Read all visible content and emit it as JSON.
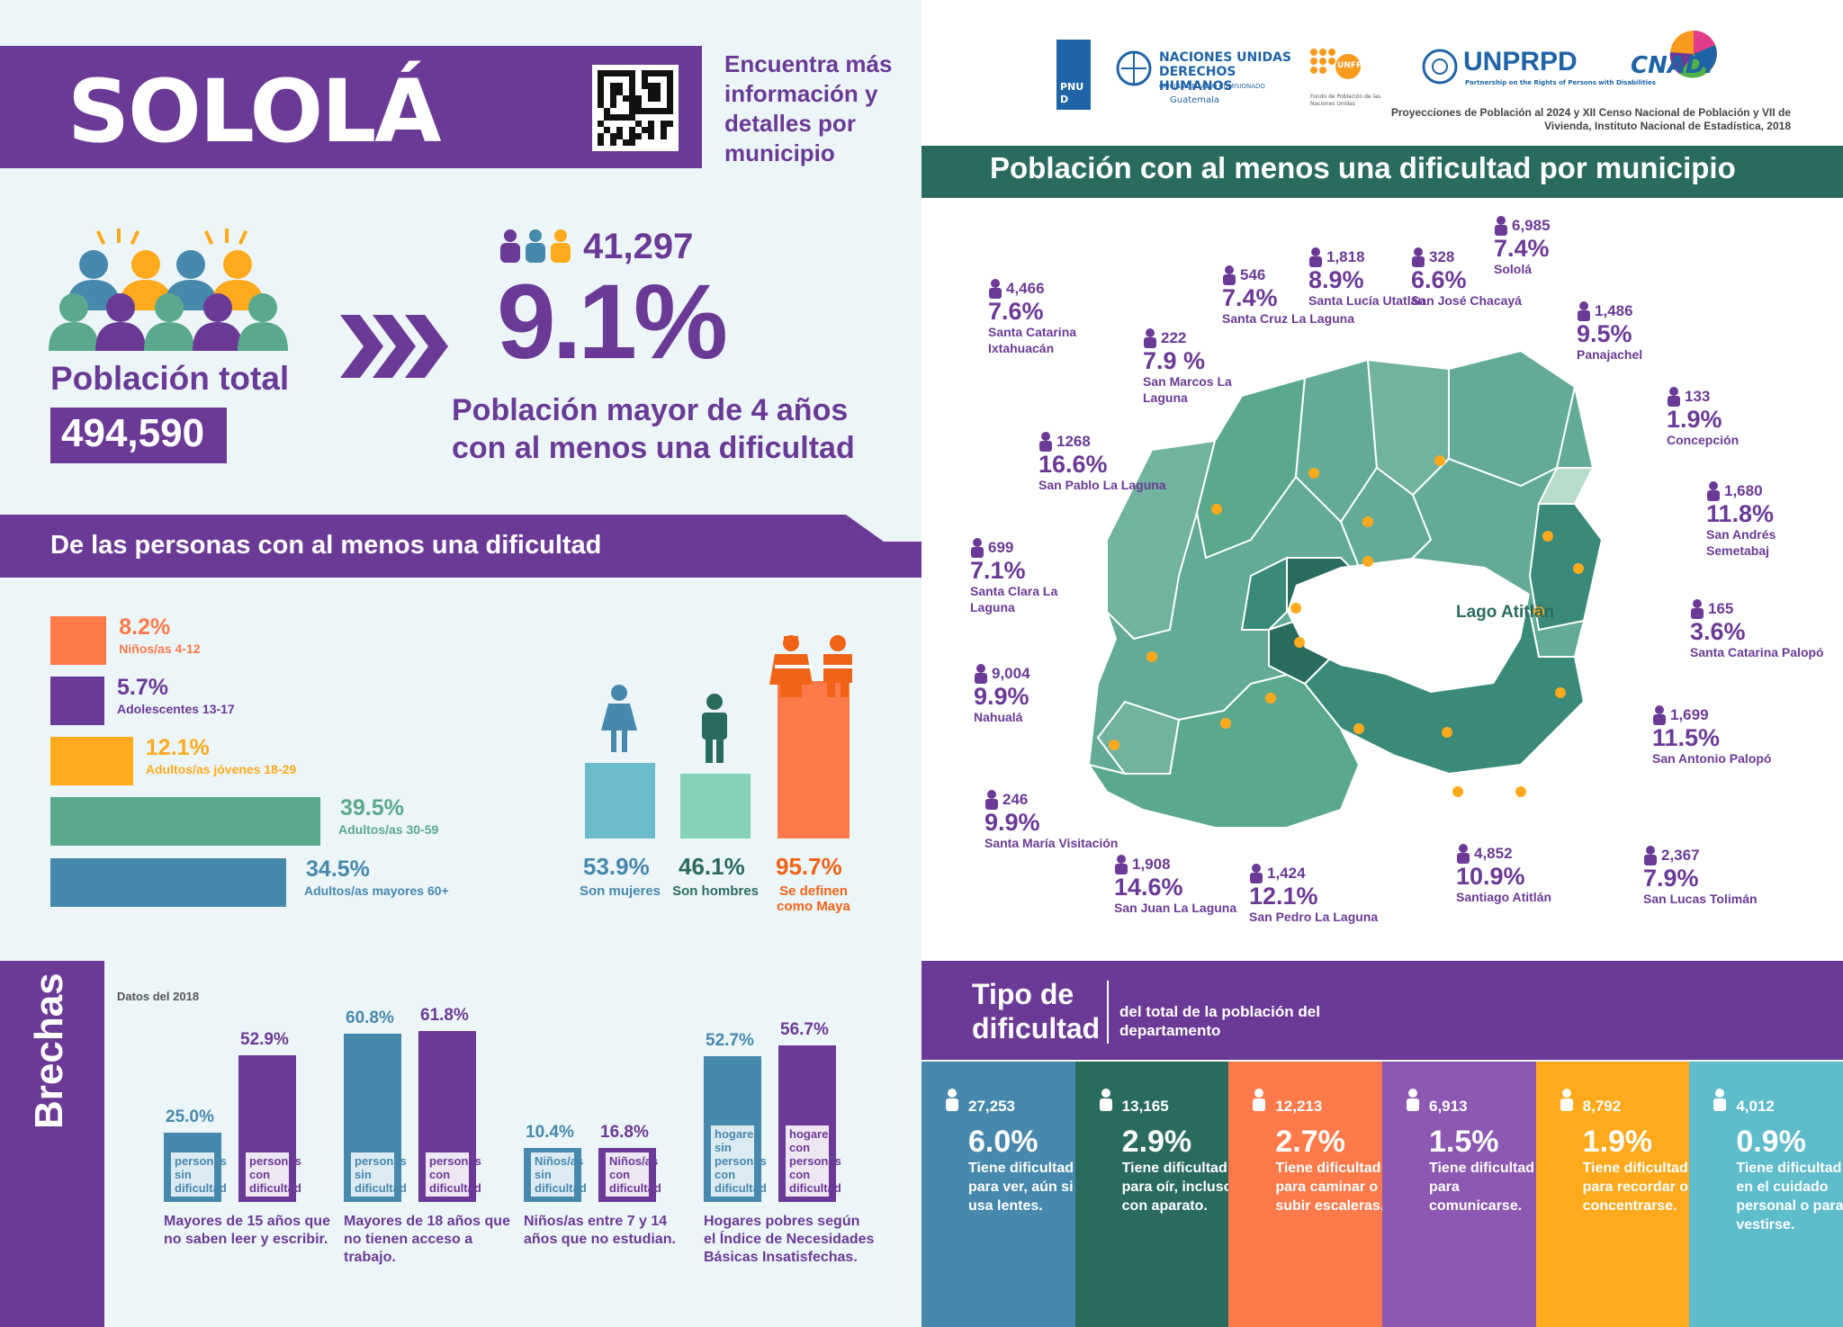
{
  "header": {
    "title": "SOLOLÁ",
    "info_link": "Encuentra más información y detalles por municipio"
  },
  "summary": {
    "population_label": "Población total",
    "population_value": "494,590",
    "count": "41,297",
    "percent": "9.1%",
    "percent_desc": "Población mayor de 4 años con al menos una dificultad"
  },
  "breakdown": {
    "title": "De las personas con al menos una dificultad",
    "age_groups": [
      {
        "pct": "8.2%",
        "label": "Niños/as 4-12",
        "value": 8.2,
        "color": "#ff7a4a"
      },
      {
        "pct": "5.7%",
        "label": "Adolescentes 13-17",
        "value": 5.7,
        "color": "#6b3a96"
      },
      {
        "pct": "12.1%",
        "label": "Adultos/as jóvenes 18-29",
        "value": 12.1,
        "color": "#ffaa1d"
      },
      {
        "pct": "39.5%",
        "label": "Adultos/as 30-59",
        "value": 39.5,
        "color": "#5aa98c"
      },
      {
        "pct": "34.5%",
        "label": "Adultos/as mayores 60+",
        "value": 34.5,
        "color": "#4789ad"
      }
    ],
    "groups": [
      {
        "pct": "53.9%",
        "label": "Son mujeres",
        "value": 53.9,
        "color": "#6bbccb",
        "text_color": "#4789ad"
      },
      {
        "pct": "46.1%",
        "label": "Son hombres",
        "value": 46.1,
        "color": "#86d2b8",
        "text_color": "#2a6b60"
      },
      {
        "pct": "95.7%",
        "label": "Se definen como Maya",
        "value": 95.7,
        "color": "#ff7a4a",
        "text_color": "#f06418"
      }
    ]
  },
  "map_section": {
    "title": "Población con al menos una dificultad por municipio",
    "source": "Proyecciones de Población al 2024 y XII Censo Nacional de Población y VII de Vivienda, Instituto Nacional de Estadística, 2018",
    "lake_label": "Lago Atitlán",
    "municipalities": [
      {
        "n": "4,466",
        "p": "7.6%",
        "name": "Santa Catarina Ixtahuacán"
      },
      {
        "n": "546",
        "p": "7.4%",
        "name": "Santa Cruz La Laguna"
      },
      {
        "n": "1,818",
        "p": "8.9%",
        "name": "Santa Lucía Utatlán"
      },
      {
        "n": "328",
        "p": "6.6%",
        "name": "San José Chacayá"
      },
      {
        "n": "6,985",
        "p": "7.4%",
        "name": "Sololá"
      },
      {
        "n": "222",
        "p": "7.9 %",
        "name": "San Marcos La Laguna"
      },
      {
        "n": "1,486",
        "p": "9.5%",
        "name": "Panajachel"
      },
      {
        "n": "133",
        "p": "1.9%",
        "name": "Concepción"
      },
      {
        "n": "1268",
        "p": "16.6%",
        "name": "San Pablo La Laguna"
      },
      {
        "n": "1,680",
        "p": "11.8%",
        "name": "San Andrés Semetabaj"
      },
      {
        "n": "699",
        "p": "7.1%",
        "name": "Santa Clara La Laguna"
      },
      {
        "n": "165",
        "p": "3.6%",
        "name": "Santa Catarina Palopó"
      },
      {
        "n": "9,004",
        "p": "9.9%",
        "name": "Nahualá"
      },
      {
        "n": "1,699",
        "p": "11.5%",
        "name": "San Antonio Palopó"
      },
      {
        "n": "246",
        "p": "9.9%",
        "name": "Santa María Visitación"
      },
      {
        "n": "1,908",
        "p": "14.6%",
        "name": "San Juan La Laguna"
      },
      {
        "n": "1,424",
        "p": "12.1%",
        "name": "San Pedro La Laguna"
      },
      {
        "n": "4,852",
        "p": "10.9%",
        "name": "Santiago Atitlán"
      },
      {
        "n": "2,367",
        "p": "7.9%",
        "name": "San Lucas Tolimán"
      }
    ]
  },
  "logos": {
    "pnud": "PNUD",
    "ohchr": "NACIONES UNIDAS DERECHOS HUMANOS",
    "ohchr_sub": "OFICINA DEL ALTO COMISIONADO",
    "ohchr_place": "Guatemala",
    "unfpa": "UNFPA",
    "unfpa_sub": "Fondo de Población de las Naciones Unidas",
    "unprpd": "UNPRPD",
    "unprpd_sub": "Partnership on the Rights of Persons with Disabilities",
    "conadi": "CNADI"
  },
  "brechas": {
    "title": "Brechas",
    "data_year": "Datos del 2018",
    "groups": [
      {
        "a_pct": "25.0%",
        "a_val": 25.0,
        "a_lbl": "personas sin dificultad",
        "b_pct": "52.9%",
        "b_val": 52.9,
        "b_lbl": "personas con dificultad",
        "caption": "Mayores de 15 años que no saben leer y escribir."
      },
      {
        "a_pct": "60.8%",
        "a_val": 60.8,
        "a_lbl": "personas sin dificultad",
        "b_pct": "61.8%",
        "b_val": 61.8,
        "b_lbl": "personas con dificultad",
        "caption": "Mayores de 18 años que no tienen acceso a trabajo."
      },
      {
        "a_pct": "10.4%",
        "a_val": 10.4,
        "a_lbl": "Niños/as sin dificultad",
        "b_pct": "16.8%",
        "b_val": 16.8,
        "b_lbl": "Niños/as con dificultad",
        "caption": "Niños/as entre 7 y 14 años que no estudian."
      },
      {
        "a_pct": "52.7%",
        "a_val": 52.7,
        "a_lbl": "hogares sin personas con dificultad",
        "b_pct": "56.7%",
        "b_val": 56.7,
        "b_lbl": "hogares con personas con dificultad",
        "caption": "Hogares pobres según el Índice de Necesidades Básicas Insatisfechas."
      }
    ]
  },
  "tipo": {
    "title": "Tipo de dificultad",
    "subtitle": "del total de la población del departamento",
    "cards": [
      {
        "n": "27,253",
        "p": "6.0%",
        "t": "Tiene dificultad para ver, aún si usa lentes.",
        "color": "#4789ad"
      },
      {
        "n": "13,165",
        "p": "2.9%",
        "t": "Tiene dificultad para oír, incluso con aparato.",
        "color": "#2a6b60"
      },
      {
        "n": "12,213",
        "p": "2.7%",
        "t": "Tiene dificultad para caminar o subir escaleras.",
        "color": "#ff7a4a"
      },
      {
        "n": "6,913",
        "p": "1.5%",
        "t": "Tiene dificultad para comunicarse.",
        "color": "#8c58b2"
      },
      {
        "n": "8,792",
        "p": "1.9%",
        "t": "Tiene dificultad para recordar o concentrarse.",
        "color": "#ffaa1d"
      },
      {
        "n": "4,012",
        "p": "0.9%",
        "t": "Tiene dificultad en el cuidado personal o para vestirse.",
        "color": "#5ebccb"
      }
    ]
  }
}
